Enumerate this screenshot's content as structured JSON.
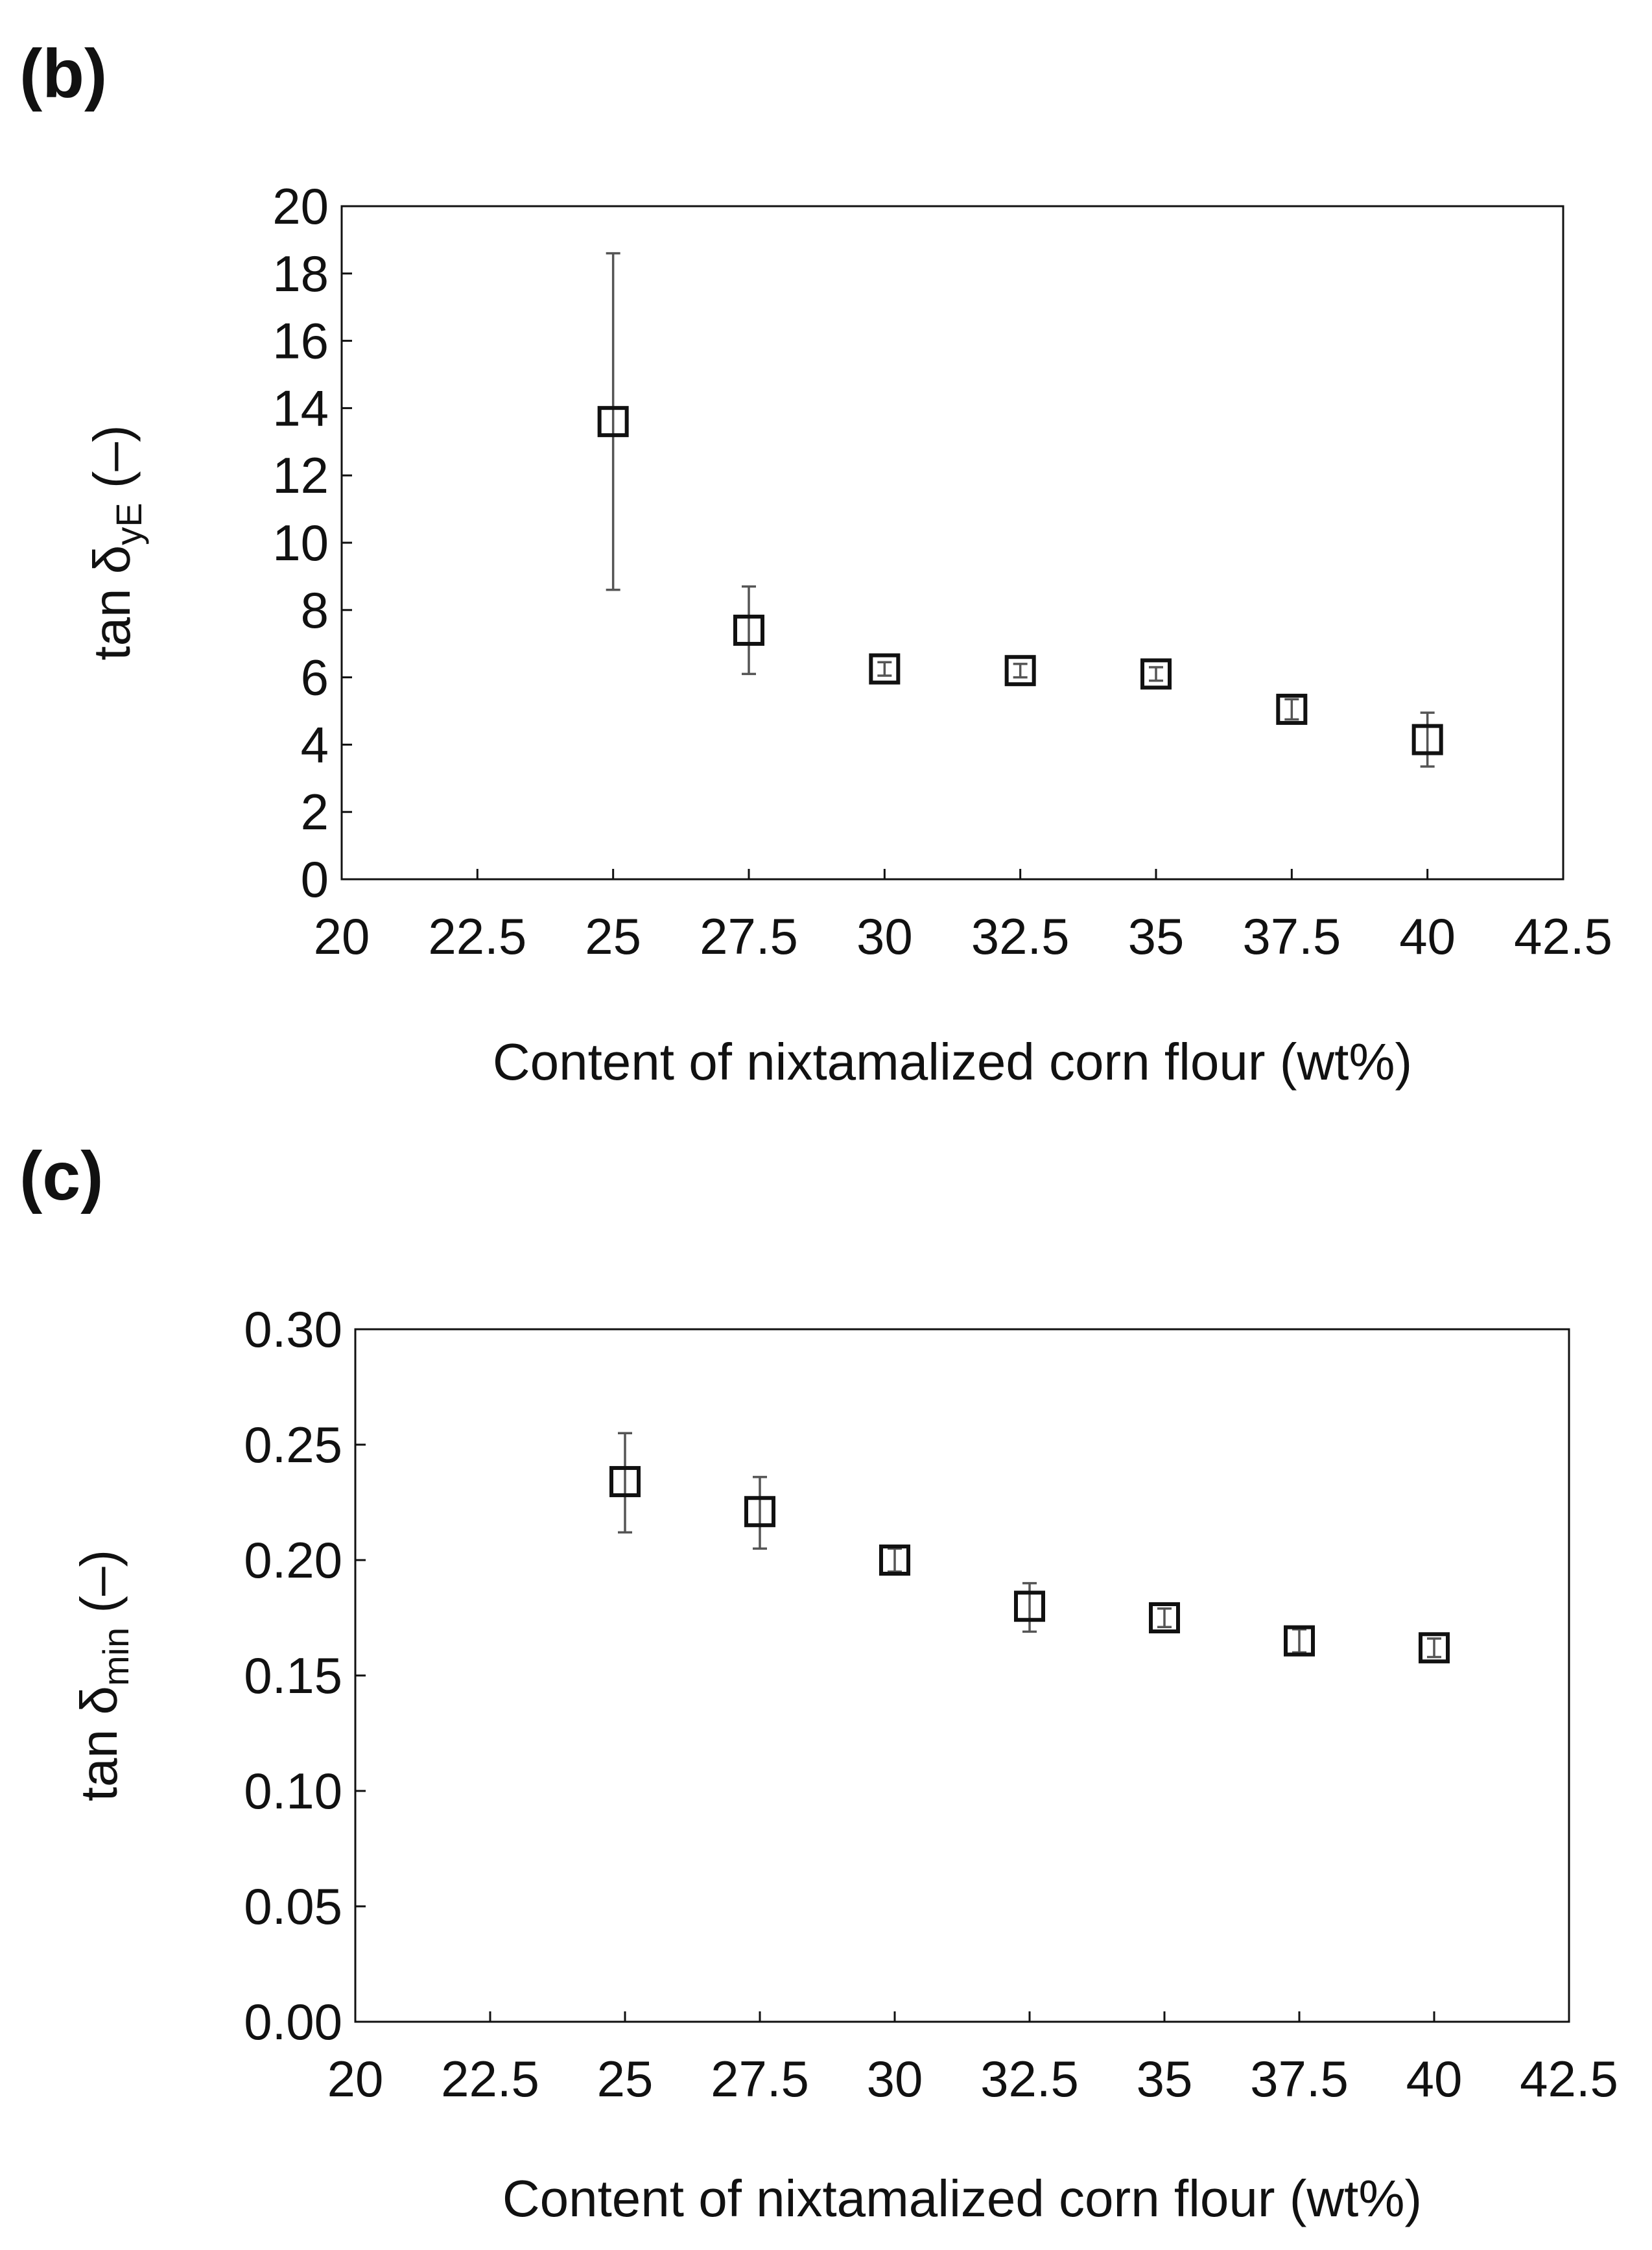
{
  "chart_data": [
    {
      "panel_label": "(b)",
      "type": "scatter",
      "x": [
        25,
        27.5,
        30,
        32.5,
        35,
        37.5,
        40
      ],
      "y": [
        13.6,
        7.4,
        6.25,
        6.2,
        6.1,
        5.05,
        4.15
      ],
      "y_err_low": [
        5.0,
        1.3,
        0.2,
        0.2,
        0.2,
        0.3,
        0.8
      ],
      "y_err_high": [
        5.0,
        1.3,
        0.2,
        0.2,
        0.2,
        0.3,
        0.8
      ],
      "xlim": [
        20,
        42.5
      ],
      "ylim": [
        0,
        20
      ],
      "x_ticks": [
        20,
        22.5,
        25,
        27.5,
        30,
        32.5,
        35,
        37.5,
        40,
        42.5
      ],
      "x_tick_labels": [
        "20",
        "22.5",
        "25",
        "27.5",
        "30",
        "32.5",
        "35",
        "37.5",
        "40",
        "42.5"
      ],
      "y_ticks": [
        0,
        2,
        4,
        6,
        8,
        10,
        12,
        14,
        16,
        18,
        20
      ],
      "y_tick_labels": [
        "0",
        "2",
        "4",
        "6",
        "8",
        "10",
        "12",
        "14",
        "16",
        "18",
        "20"
      ],
      "xlabel": "Content of nixtamalized corn flour (wt%)",
      "ylabel_main": "tan δ",
      "ylabel_sub": "yE",
      "ylabel_unit": " (–)",
      "marker": "open-square",
      "grid": false,
      "legend": "none"
    },
    {
      "panel_label": "(c)",
      "type": "scatter",
      "x": [
        25,
        27.5,
        30,
        32.5,
        35,
        37.5,
        40
      ],
      "y": [
        0.234,
        0.221,
        0.2,
        0.18,
        0.175,
        0.165,
        0.162
      ],
      "y_err_low": [
        0.022,
        0.016,
        0.005,
        0.011,
        0.004,
        0.005,
        0.004
      ],
      "y_err_high": [
        0.021,
        0.015,
        0.005,
        0.01,
        0.004,
        0.005,
        0.004
      ],
      "xlim": [
        20,
        42.5
      ],
      "ylim": [
        0,
        0.3
      ],
      "x_ticks": [
        20,
        22.5,
        25,
        27.5,
        30,
        32.5,
        35,
        37.5,
        40,
        42.5
      ],
      "x_tick_labels": [
        "20",
        "22.5",
        "25",
        "27.5",
        "30",
        "32.5",
        "35",
        "37.5",
        "40",
        "42.5"
      ],
      "y_ticks": [
        0,
        0.05,
        0.1,
        0.15,
        0.2,
        0.25,
        0.3
      ],
      "y_tick_labels": [
        "0.00",
        "0.05",
        "0.10",
        "0.15",
        "0.20",
        "0.25",
        "0.30"
      ],
      "xlabel": "Content of nixtamalized corn flour (wt%)",
      "ylabel_main": "tan δ",
      "ylabel_sub": "min",
      "ylabel_unit": " (–)",
      "marker": "open-square",
      "grid": false,
      "legend": "none"
    }
  ]
}
